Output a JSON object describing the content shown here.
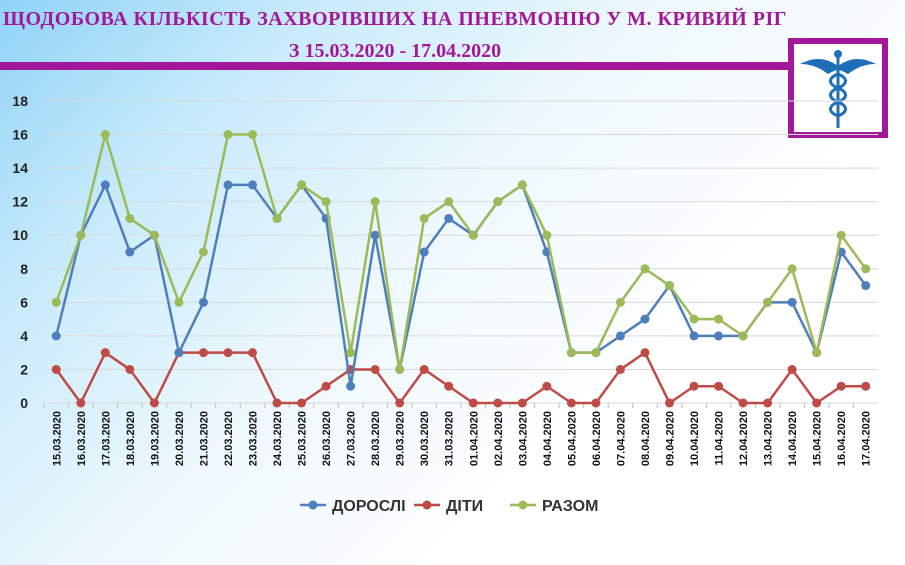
{
  "title": {
    "line1": "ЩОДОБОВА КІЛЬКІСТЬ ЗАХВОРІВШИХ  НА ПНЕВМОНІЮ  У М. КРИВИЙ РІГ",
    "line2": "З 15.03.2020 - 17.04.2020"
  },
  "logo": {
    "icon": "caduceus-icon"
  },
  "colors": {
    "brand": "#a3179b",
    "adults": "#4e7fbc",
    "children": "#bf4b46",
    "total": "#9cba57",
    "grid": "#d9d9d9"
  },
  "chart_data": {
    "type": "line",
    "categories": [
      "15.03.2020",
      "16.03.2020",
      "17.03.2020",
      "18.03.2020",
      "19.03.2020",
      "20.03.2020",
      "21.03.2020",
      "22.03.2020",
      "23.03.2020",
      "24.03.2020",
      "25.03.2020",
      "26.03.2020",
      "27.03.2020",
      "28.03.2020",
      "29.03.2020",
      "30.03.2020",
      "31.03.2020",
      "01.04.2020",
      "02.04.2020",
      "03.04.2020",
      "04.04.2020",
      "05.04.2020",
      "06.04.2020",
      "07.04.2020",
      "08.04.2020",
      "09.04.2020",
      "10.04.2020",
      "11.04.2020",
      "12.04.2020",
      "13.04.2020",
      "14.04.2020",
      "15.04.2020",
      "16.04.2020",
      "17.04.2020"
    ],
    "series": [
      {
        "name": "ДОРОСЛІ",
        "color": "#4e7fbc",
        "values": [
          4,
          10,
          13,
          9,
          10,
          3,
          6,
          13,
          13,
          11,
          13,
          11,
          1,
          10,
          2,
          9,
          11,
          10,
          12,
          13,
          9,
          3,
          3,
          4,
          5,
          7,
          4,
          4,
          4,
          6,
          6,
          3,
          9,
          7
        ]
      },
      {
        "name": "ДІТИ",
        "color": "#bf4b46",
        "values": [
          2,
          0,
          3,
          2,
          0,
          3,
          3,
          3,
          3,
          0,
          0,
          1,
          2,
          2,
          0,
          2,
          1,
          0,
          0,
          0,
          1,
          0,
          0,
          2,
          3,
          0,
          1,
          1,
          0,
          0,
          2,
          0,
          1,
          1
        ]
      },
      {
        "name": "РАЗОМ",
        "color": "#9cba57",
        "values": [
          6,
          10,
          16,
          11,
          10,
          6,
          9,
          16,
          16,
          11,
          13,
          12,
          3,
          12,
          2,
          11,
          12,
          10,
          12,
          13,
          10,
          3,
          3,
          6,
          8,
          7,
          5,
          5,
          4,
          6,
          8,
          3,
          10,
          8
        ]
      }
    ],
    "yticks": [
      0,
      2,
      4,
      6,
      8,
      10,
      12,
      14,
      16,
      18
    ],
    "ylim": [
      0,
      18
    ],
    "grid": true,
    "legend_position": "bottom-center"
  }
}
